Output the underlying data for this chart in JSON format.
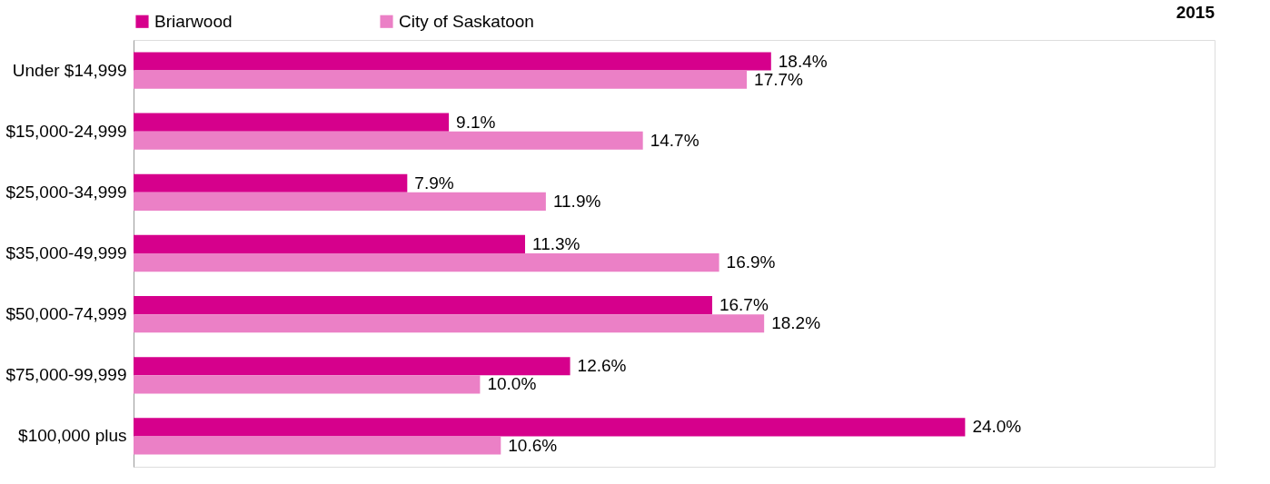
{
  "chart_data": {
    "type": "bar",
    "orientation": "horizontal",
    "title": "2015",
    "legend": "top",
    "categories": [
      "Under $14,999",
      "$15,000-24,999",
      "$25,000-34,999",
      "$35,000-49,999",
      "$50,000-74,999",
      "$75,000-99,999",
      "$100,000 plus"
    ],
    "series": [
      {
        "name": "Briarwood",
        "color": "#d6008c",
        "values": [
          18.4,
          9.1,
          7.9,
          11.3,
          16.7,
          12.6,
          24.0
        ],
        "value_labels": [
          "18.4%",
          "9.1%",
          "7.9%",
          "11.3%",
          "16.7%",
          "12.6%",
          "24.0%"
        ]
      },
      {
        "name": "City of Saskatoon",
        "color": "#eb80c6",
        "values": [
          17.7,
          14.7,
          11.9,
          16.9,
          18.2,
          10.0,
          10.6
        ],
        "value_labels": [
          "17.7%",
          "14.7%",
          "11.9%",
          "16.9%",
          "18.2%",
          "10.0%",
          "10.6%"
        ]
      }
    ]
  }
}
